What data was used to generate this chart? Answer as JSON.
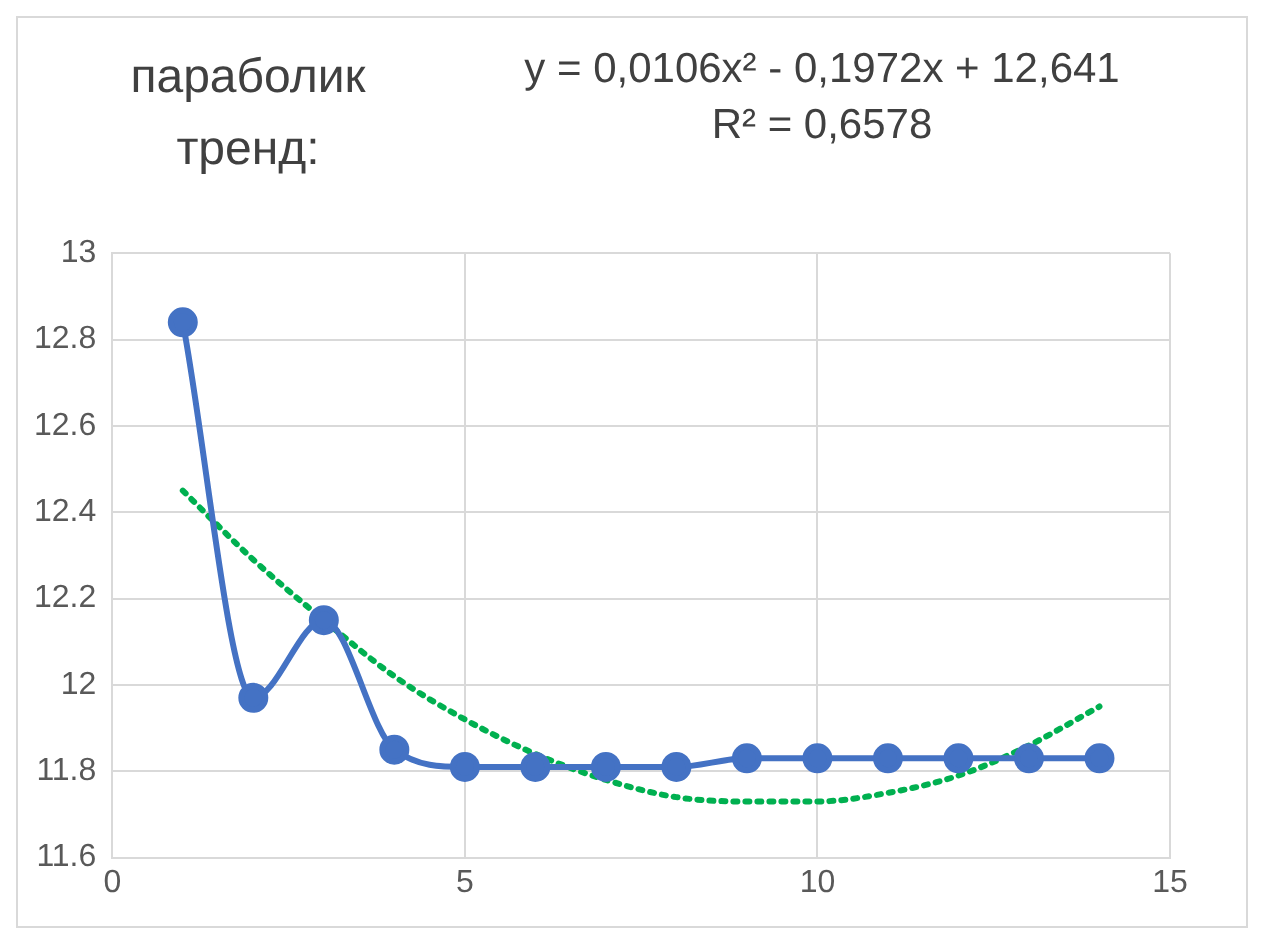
{
  "chart_data": {
    "type": "line",
    "title": "параболик тренд:",
    "annotations": [
      "y = 0,0106x² - 0,1972x + 12,641",
      "R² = 0,6578"
    ],
    "x": [
      1,
      2,
      3,
      4,
      5,
      6,
      7,
      8,
      9,
      10,
      11,
      12,
      13,
      14
    ],
    "series": [
      {
        "color": "#4472c4",
        "values": [
          12.84,
          11.97,
          12.15,
          11.85,
          11.81,
          11.81,
          11.81,
          11.81,
          11.83,
          11.83,
          11.83,
          11.83,
          11.83,
          11.83
        ],
        "marker": "circle",
        "line_style": "solid"
      },
      {
        "color": "#00b050",
        "values": [
          12.45,
          12.29,
          12.15,
          12.02,
          11.92,
          11.84,
          11.78,
          11.74,
          11.73,
          11.73,
          11.75,
          11.79,
          11.86,
          11.95
        ],
        "marker": "none",
        "line_style": "dotted"
      }
    ],
    "xlim": [
      0,
      15
    ],
    "xticks": [
      0,
      5,
      10,
      15
    ],
    "ylim": [
      11.6,
      13
    ],
    "yticks": [
      11.6,
      11.8,
      12,
      12.2,
      12.4,
      12.6,
      12.8,
      13
    ],
    "grid": true,
    "legend": false
  }
}
